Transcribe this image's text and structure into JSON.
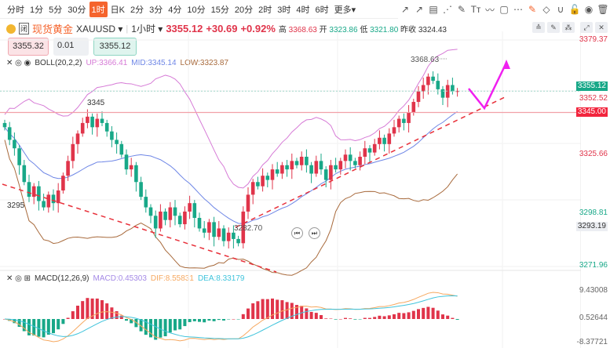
{
  "periods": [
    "分时",
    "1分",
    "5分",
    "30分",
    "1时",
    "日K",
    "2分",
    "3分",
    "4分",
    "10分",
    "15分",
    "20分",
    "2时",
    "3时",
    "4时",
    "6时",
    "更多▾"
  ],
  "active_period": "1时",
  "tools": [
    "↗",
    "↗",
    "▤",
    "⋰",
    "✎",
    "Tт",
    "〰",
    "▢",
    "⋯",
    "✎",
    "◇",
    "∪",
    "🔓",
    "◉",
    "🗑"
  ],
  "symbol": {
    "name": "现货黄金",
    "code": "XAUUSD ▾",
    "interval": "1小时 ▾",
    "price": "3355.12",
    "change": "+30.69",
    "pct": "+0.92%",
    "high_label": "高",
    "high": "3368.63",
    "open_label": "开",
    "open": "3323.86",
    "low_label": "低",
    "low": "3321.80",
    "prev_label": "昨收",
    "prev": "3324.43"
  },
  "trade": {
    "sell": "3355.32",
    "lot": "0.01",
    "buy": "3355.12"
  },
  "boll": {
    "label": "BOLL(20,2,2)",
    "up": "UP:3366.41",
    "mid": "MID:3345.14",
    "low": "LOW:3323.87"
  },
  "macd": {
    "label": "MACD(12,26,9)",
    "macd": "MACD:0.45303",
    "dif": "DIF:8.55831",
    "dea": "DEA:8.33179"
  },
  "axis": {
    "p1": "3379.37",
    "p2": "3352.52",
    "p3": "3325.66",
    "p4": "3298.81",
    "p5": "3271.96",
    "m1": "9.43008",
    "m2": "0.52644",
    "m3": "-8.37721",
    "cur": "3355.12",
    "line": "3345.00",
    "alert": "3293.19"
  },
  "annotations": {
    "hi": "3368.63",
    "lo": "3282.70",
    "a1": "3345",
    "a2": "3295"
  },
  "colors": {
    "up": "#e0344a",
    "down": "#18a888"
  },
  "chart_data": {
    "type": "candlestick",
    "closes": [
      3338,
      3332,
      3328,
      3320,
      3312,
      3305,
      3310,
      3303,
      3300,
      3306,
      3302,
      3308,
      3315,
      3322,
      3330,
      3335,
      3340,
      3343,
      3338,
      3342,
      3340,
      3336,
      3332,
      3330,
      3325,
      3318,
      3320,
      3312,
      3305,
      3300,
      3296,
      3290,
      3298,
      3294,
      3300,
      3296,
      3292,
      3298,
      3302,
      3295,
      3290,
      3288,
      3293,
      3286,
      3290,
      3284,
      3288,
      3285,
      3283,
      3298,
      3306,
      3312,
      3310,
      3315,
      3313,
      3318,
      3316,
      3320,
      3318,
      3322,
      3320,
      3324,
      3320,
      3316,
      3322,
      3318,
      3313,
      3320,
      3318,
      3322,
      3325,
      3322,
      3320,
      3324,
      3328,
      3326,
      3330,
      3333,
      3330,
      3335,
      3338,
      3342,
      3340,
      3345,
      3350,
      3355,
      3358,
      3362,
      3360,
      3356,
      3352,
      3358,
      3355,
      3355.12
    ],
    "ylim": [
      3271.96,
      3379.37
    ],
    "macd_ylim": [
      -8.37721,
      9.43008
    ]
  }
}
